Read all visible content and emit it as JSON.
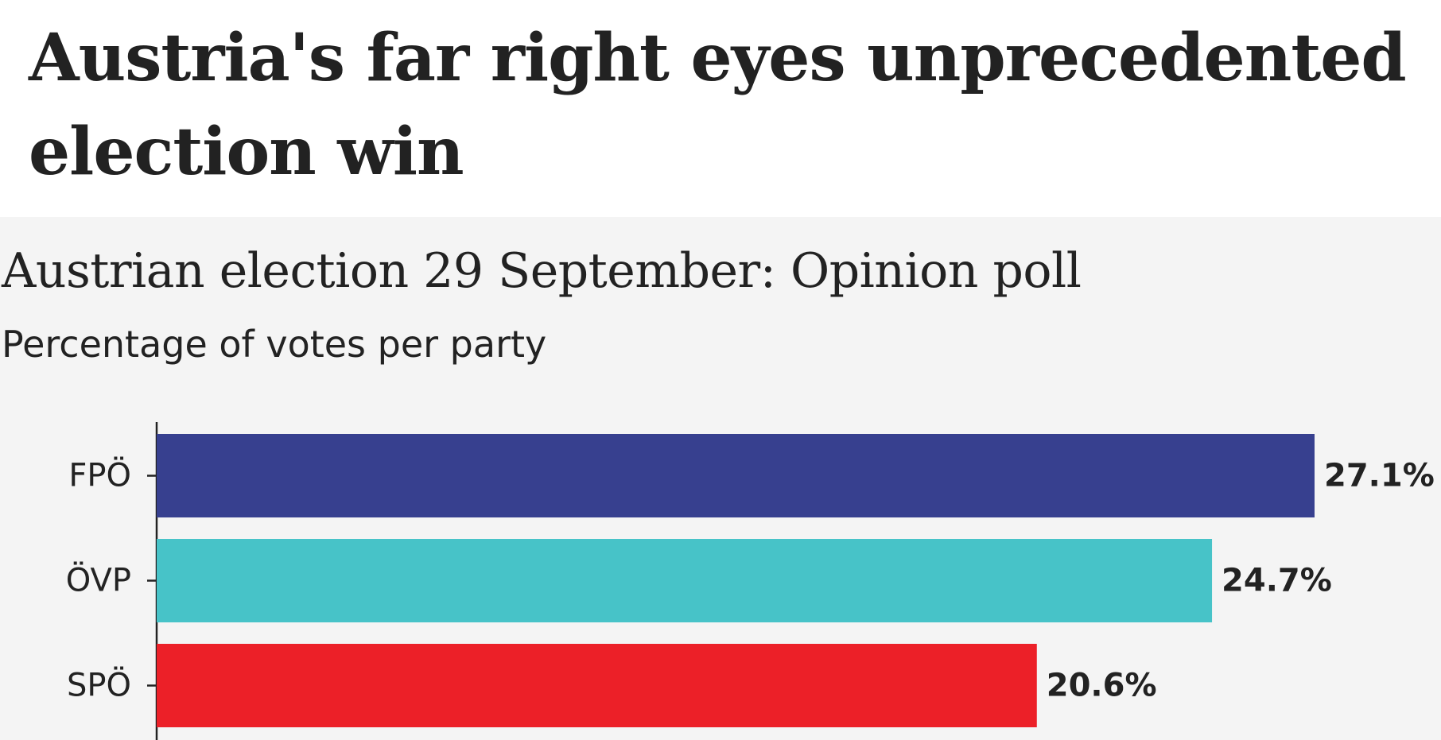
{
  "article": {
    "headline": "Austria's far right eyes unprecedented election win"
  },
  "chart_data": {
    "type": "bar",
    "orientation": "horizontal",
    "title": "Austrian election 29 September: Opinion poll",
    "subtitle": "Percentage of votes per party",
    "categories": [
      "FPÖ",
      "ÖVP",
      "SPÖ"
    ],
    "values": [
      27.1,
      24.7,
      20.6
    ],
    "value_labels": [
      "27.1%",
      "24.7%",
      "20.6%"
    ],
    "colors": [
      "#37408f",
      "#47c3c8",
      "#ec2028"
    ],
    "xlim": [
      0,
      27.1
    ],
    "grid": false,
    "legend": "none"
  }
}
